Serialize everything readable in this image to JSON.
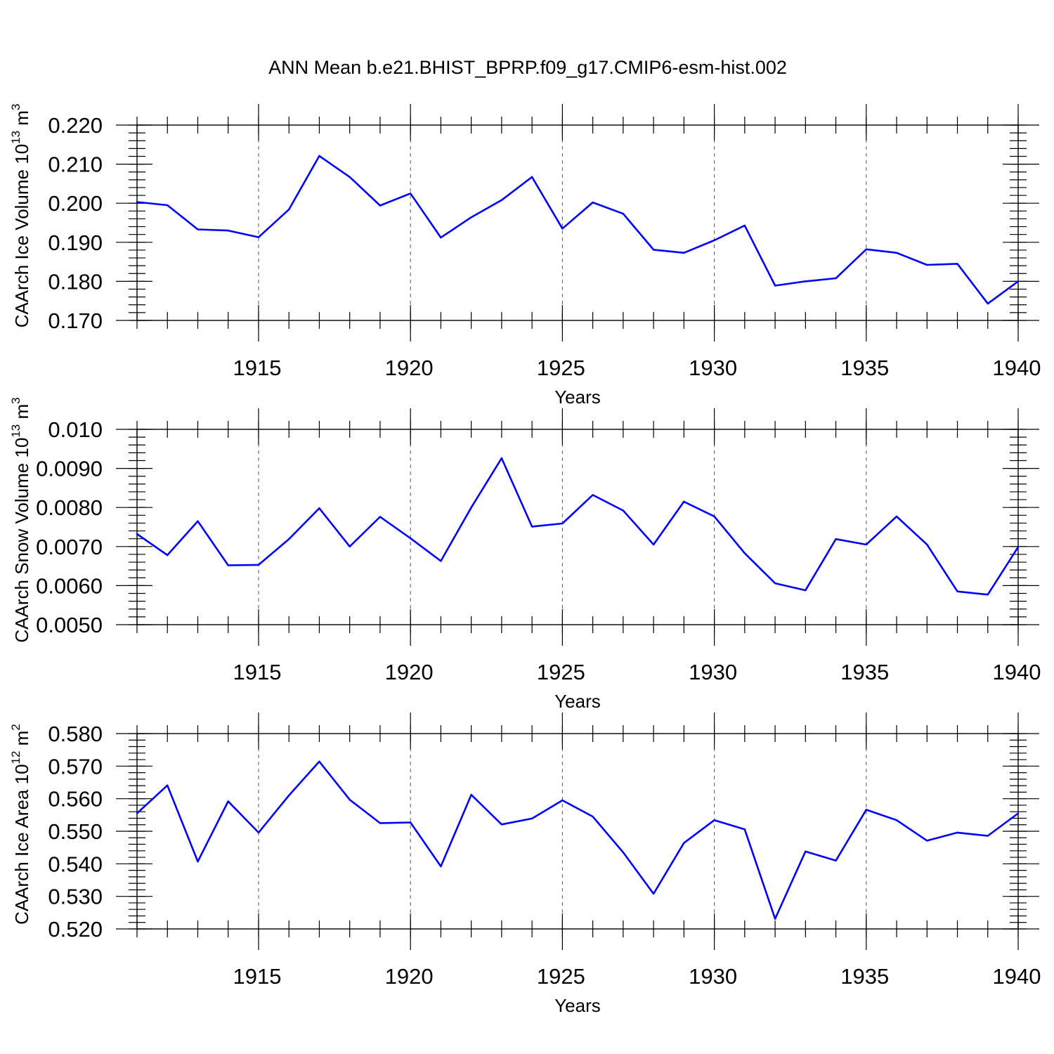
{
  "figure": {
    "title": "ANN Mean b.e21.BHIST_BPRP.f09_g17.CMIP6-esm-hist.002",
    "line_color": "#0000ff"
  },
  "chart_data": [
    {
      "type": "line",
      "ylabel": "CAArch Ice Volume 10",
      "ylabel_exp": "13",
      "ylabel_unit": " m",
      "ylabel_unit_exp": "3",
      "xlabel": "Years",
      "xlim": [
        1911,
        1940
      ],
      "ylim": [
        0.17,
        0.22
      ],
      "yticks": [
        "0.220",
        "0.210",
        "0.200",
        "0.190",
        "0.180",
        "0.170"
      ],
      "ytick_values": [
        0.22,
        0.21,
        0.2,
        0.19,
        0.18,
        0.17
      ],
      "xticks": [
        "1915",
        "1920",
        "1925",
        "1930",
        "1935",
        "1940"
      ],
      "xtick_values": [
        1915,
        1920,
        1925,
        1930,
        1935,
        1940
      ],
      "x": [
        1911,
        1912,
        1913,
        1914,
        1915,
        1916,
        1917,
        1918,
        1919,
        1920,
        1921,
        1922,
        1923,
        1924,
        1925,
        1926,
        1927,
        1928,
        1929,
        1930,
        1931,
        1932,
        1933,
        1934,
        1935,
        1936,
        1937,
        1938,
        1939,
        1940
      ],
      "values": [
        0.2003,
        0.1995,
        0.1933,
        0.193,
        0.1913,
        0.1984,
        0.2121,
        0.2067,
        0.1994,
        0.2025,
        0.1912,
        0.1964,
        0.2008,
        0.2067,
        0.1935,
        0.2002,
        0.1973,
        0.1881,
        0.1873,
        0.1905,
        0.1943,
        0.1789,
        0.18,
        0.1808,
        0.1882,
        0.1873,
        0.1842,
        0.1845,
        0.1743,
        0.18
      ],
      "grid": "dashed vertical lines at major x ticks"
    },
    {
      "type": "line",
      "ylabel": "CAArch Snow Volume 10",
      "ylabel_exp": "13",
      "ylabel_unit": " m",
      "ylabel_unit_exp": "3",
      "xlabel": "Years",
      "xlim": [
        1911,
        1940
      ],
      "ylim": [
        0.005,
        0.01
      ],
      "yticks": [
        "0.010",
        "0.0090",
        "0.0080",
        "0.0070",
        "0.0060",
        "0.0050"
      ],
      "ytick_values": [
        0.01,
        0.009,
        0.008,
        0.007,
        0.006,
        0.005
      ],
      "xticks": [
        "1915",
        "1920",
        "1925",
        "1930",
        "1935",
        "1940"
      ],
      "xtick_values": [
        1915,
        1920,
        1925,
        1930,
        1935,
        1940
      ],
      "x": [
        1911,
        1912,
        1913,
        1914,
        1915,
        1916,
        1917,
        1918,
        1919,
        1920,
        1921,
        1922,
        1923,
        1924,
        1925,
        1926,
        1927,
        1928,
        1929,
        1930,
        1931,
        1932,
        1933,
        1934,
        1935,
        1936,
        1937,
        1938,
        1939,
        1940
      ],
      "values": [
        0.00732,
        0.00678,
        0.00765,
        0.00652,
        0.00653,
        0.00719,
        0.00798,
        0.007,
        0.00776,
        0.00721,
        0.00663,
        0.008,
        0.00926,
        0.00751,
        0.00759,
        0.00832,
        0.00792,
        0.00705,
        0.00815,
        0.00777,
        0.00683,
        0.00606,
        0.00588,
        0.00719,
        0.00705,
        0.00777,
        0.00705,
        0.00585,
        0.00577,
        0.00699
      ],
      "grid": "dashed vertical lines at major x ticks"
    },
    {
      "type": "line",
      "ylabel": "CAArch Ice Area 10",
      "ylabel_exp": "12",
      "ylabel_unit": " m",
      "ylabel_unit_exp": "2",
      "xlabel": "Years",
      "xlim": [
        1911,
        1940
      ],
      "ylim": [
        0.52,
        0.58
      ],
      "yticks": [
        "0.580",
        "0.570",
        "0.560",
        "0.550",
        "0.540",
        "0.530",
        "0.520"
      ],
      "ytick_values": [
        0.58,
        0.57,
        0.56,
        0.55,
        0.54,
        0.53,
        0.52
      ],
      "xticks": [
        "1915",
        "1920",
        "1925",
        "1930",
        "1935",
        "1940"
      ],
      "xtick_values": [
        1915,
        1920,
        1925,
        1930,
        1935,
        1940
      ],
      "x": [
        1911,
        1912,
        1913,
        1914,
        1915,
        1916,
        1917,
        1918,
        1919,
        1920,
        1921,
        1922,
        1923,
        1924,
        1925,
        1926,
        1927,
        1928,
        1929,
        1930,
        1931,
        1932,
        1933,
        1934,
        1935,
        1936,
        1937,
        1938,
        1939,
        1940
      ],
      "values": [
        0.5555,
        0.5641,
        0.5407,
        0.5592,
        0.5496,
        0.561,
        0.5714,
        0.5597,
        0.5525,
        0.5527,
        0.5392,
        0.5612,
        0.5521,
        0.5539,
        0.5595,
        0.5545,
        0.5435,
        0.5308,
        0.5464,
        0.5534,
        0.5506,
        0.5231,
        0.5438,
        0.541,
        0.5566,
        0.5534,
        0.5471,
        0.5496,
        0.5486,
        0.5555
      ],
      "grid": "dashed vertical lines at major x ticks"
    }
  ]
}
